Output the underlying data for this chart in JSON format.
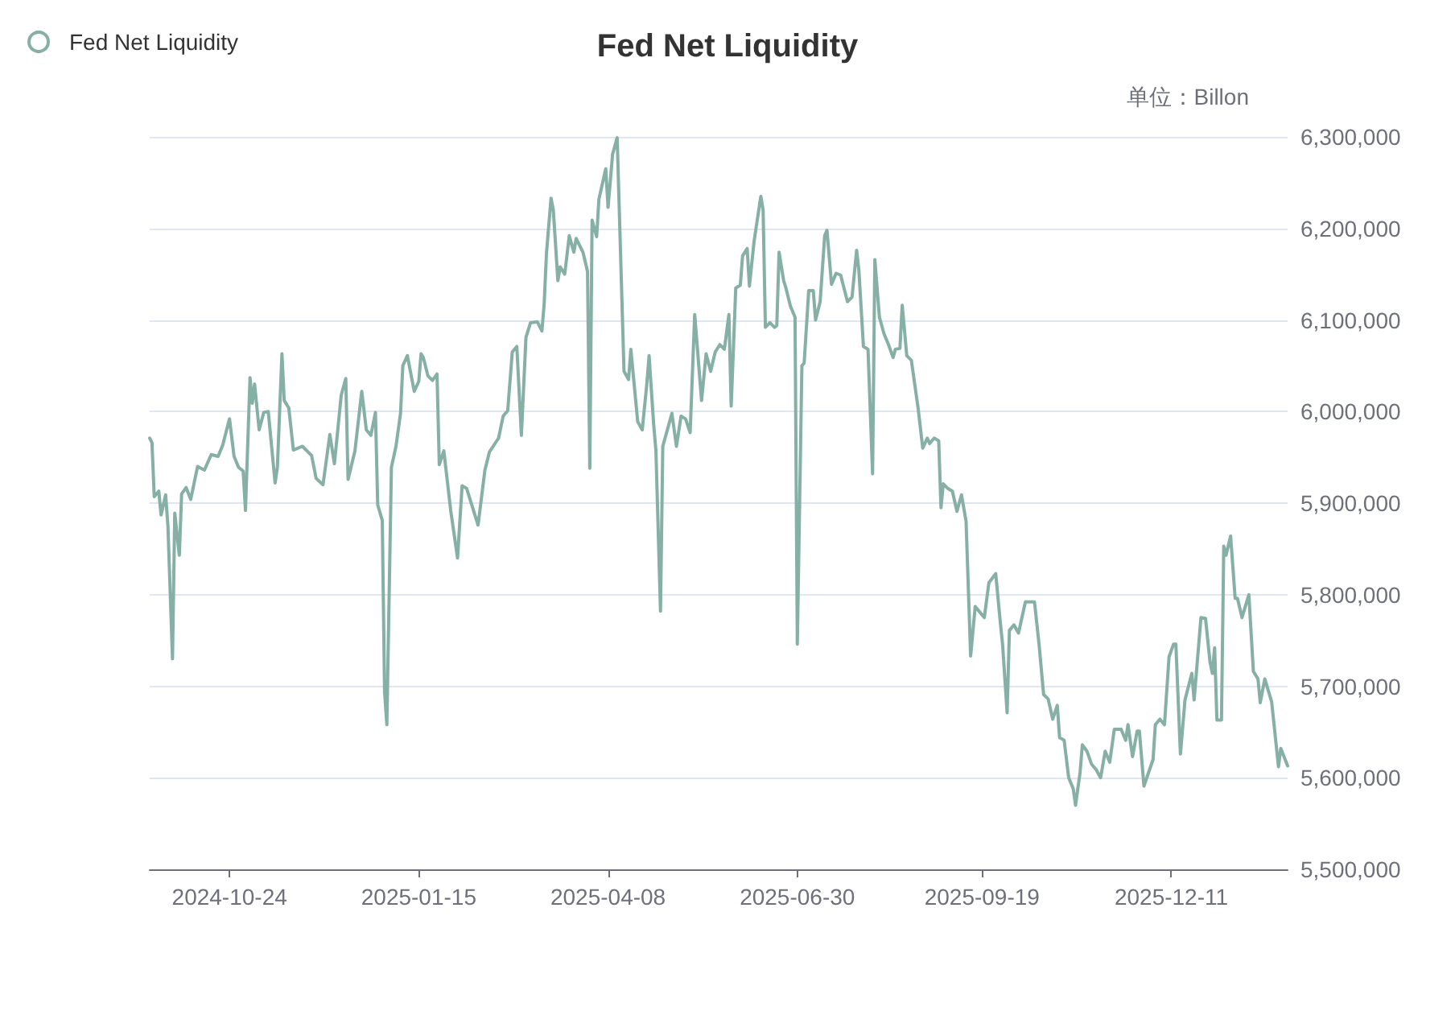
{
  "chart_data": {
    "type": "line",
    "title": "Fed Net Liquidity",
    "ylabel": "单位：Billon",
    "x": [
      "2024-09-19",
      "2024-09-20",
      "2024-09-21",
      "2024-09-23",
      "2024-09-24",
      "2024-09-26",
      "2024-09-27",
      "2024-09-29",
      "2024-09-30",
      "2024-10-02",
      "2024-10-03",
      "2024-10-05",
      "2024-10-07",
      "2024-10-10",
      "2024-10-13",
      "2024-10-16",
      "2024-10-19",
      "2024-10-21",
      "2024-10-24",
      "2024-10-26",
      "2024-10-28",
      "2024-10-30",
      "2024-10-31",
      "2024-11-02",
      "2024-11-03",
      "2024-11-04",
      "2024-11-06",
      "2024-11-08",
      "2024-11-10",
      "2024-11-13",
      "2024-11-14",
      "2024-11-16",
      "2024-11-17",
      "2024-11-19",
      "2024-11-21",
      "2024-11-25",
      "2024-11-29",
      "2024-12-01",
      "2024-12-04",
      "2024-12-07",
      "2024-12-09",
      "2024-12-12",
      "2024-12-14",
      "2024-12-15",
      "2024-12-18",
      "2024-12-21",
      "2024-12-23",
      "2024-12-25",
      "2024-12-27",
      "2024-12-28",
      "2024-12-30",
      "2024-12-31",
      "2025-01-01",
      "2025-01-03",
      "2025-01-05",
      "2025-01-07",
      "2025-01-08",
      "2025-01-10",
      "2025-01-13",
      "2025-01-15",
      "2025-01-16",
      "2025-01-17",
      "2025-01-19",
      "2025-01-21",
      "2025-01-23",
      "2025-01-24",
      "2025-01-26",
      "2025-01-29",
      "2025-02-01",
      "2025-02-03",
      "2025-02-05",
      "2025-02-10",
      "2025-02-13",
      "2025-02-15",
      "2025-02-19",
      "2025-02-21",
      "2025-02-23",
      "2025-02-25",
      "2025-02-27",
      "2025-03-01",
      "2025-03-03",
      "2025-03-05",
      "2025-03-08",
      "2025-03-10",
      "2025-03-11",
      "2025-03-12",
      "2025-03-14",
      "2025-03-15",
      "2025-03-17",
      "2025-03-18",
      "2025-03-20",
      "2025-03-22",
      "2025-03-24",
      "2025-03-25",
      "2025-03-28",
      "2025-03-30",
      "2025-03-31",
      "2025-04-01",
      "2025-04-03",
      "2025-04-04",
      "2025-04-07",
      "2025-04-08",
      "2025-04-10",
      "2025-04-12",
      "2025-04-15",
      "2025-04-17",
      "2025-04-18",
      "2025-04-21",
      "2025-04-23",
      "2025-04-25",
      "2025-04-26",
      "2025-04-28",
      "2025-04-29",
      "2025-05-01",
      "2025-05-02",
      "2025-05-05",
      "2025-05-06",
      "2025-05-08",
      "2025-05-10",
      "2025-05-12",
      "2025-05-14",
      "2025-05-16",
      "2025-05-19",
      "2025-05-21",
      "2025-05-23",
      "2025-05-25",
      "2025-05-27",
      "2025-05-29",
      "2025-05-31",
      "2025-06-01",
      "2025-06-03",
      "2025-06-05",
      "2025-06-06",
      "2025-06-08",
      "2025-06-09",
      "2025-06-11",
      "2025-06-12",
      "2025-06-14",
      "2025-06-15",
      "2025-06-16",
      "2025-06-18",
      "2025-06-20",
      "2025-06-21",
      "2025-06-22",
      "2025-06-24",
      "2025-06-25",
      "2025-06-27",
      "2025-06-29",
      "2025-06-30",
      "2025-07-02",
      "2025-07-03",
      "2025-07-05",
      "2025-07-07",
      "2025-07-08",
      "2025-07-10",
      "2025-07-12",
      "2025-07-13",
      "2025-07-15",
      "2025-07-17",
      "2025-07-19",
      "2025-07-22",
      "2025-07-24",
      "2025-07-26",
      "2025-07-27",
      "2025-07-29",
      "2025-07-31",
      "2025-08-02",
      "2025-08-03",
      "2025-08-05",
      "2025-08-07",
      "2025-08-09",
      "2025-08-11",
      "2025-08-12",
      "2025-08-14",
      "2025-08-15",
      "2025-08-17",
      "2025-08-19",
      "2025-08-22",
      "2025-08-24",
      "2025-08-26",
      "2025-08-27",
      "2025-08-29",
      "2025-08-31",
      "2025-09-01",
      "2025-09-02",
      "2025-09-04",
      "2025-09-06",
      "2025-09-08",
      "2025-09-10",
      "2025-09-12",
      "2025-09-14",
      "2025-09-16",
      "2025-09-18",
      "2025-09-20",
      "2025-09-22",
      "2025-09-25",
      "2025-09-27",
      "2025-09-28",
      "2025-09-30",
      "2025-10-01",
      "2025-10-03",
      "2025-10-05",
      "2025-10-08",
      "2025-10-12",
      "2025-10-14",
      "2025-10-16",
      "2025-10-18",
      "2025-10-20",
      "2025-10-22",
      "2025-10-23",
      "2025-10-25",
      "2025-10-27",
      "2025-10-29",
      "2025-10-30",
      "2025-11-01",
      "2025-11-02",
      "2025-11-04",
      "2025-11-06",
      "2025-11-08",
      "2025-11-10",
      "2025-11-12",
      "2025-11-14",
      "2025-11-16",
      "2025-11-19",
      "2025-11-21",
      "2025-11-22",
      "2025-11-24",
      "2025-11-26",
      "2025-11-27",
      "2025-11-29",
      "2025-12-03",
      "2025-12-04",
      "2025-12-06",
      "2025-12-08",
      "2025-12-10",
      "2025-12-12",
      "2025-12-13",
      "2025-12-15",
      "2025-12-17",
      "2025-12-20",
      "2025-12-21",
      "2025-12-24",
      "2025-12-26",
      "2025-12-28",
      "2025-12-29",
      "2025-12-30",
      "2025-12-31",
      "2026-01-02",
      "2026-01-03",
      "2026-01-04",
      "2026-01-06",
      "2026-01-08",
      "2026-01-09",
      "2026-01-11",
      "2026-01-14",
      "2026-01-16",
      "2026-01-18",
      "2026-01-19",
      "2026-01-21",
      "2026-01-24",
      "2026-01-27",
      "2026-01-28",
      "2026-01-31"
    ],
    "series": [
      {
        "name": "Fed Net Liquidity",
        "color": "#86b0a5",
        "values": [
          5971000,
          5966000,
          5907000,
          5913000,
          5887000,
          5909000,
          5875000,
          5730000,
          5889000,
          5843000,
          5910000,
          5917000,
          5904000,
          5940000,
          5936000,
          5953000,
          5951000,
          5963000,
          5992000,
          5951000,
          5939000,
          5935000,
          5892000,
          6037000,
          6009000,
          6030000,
          5980000,
          5999000,
          6000000,
          5922000,
          5939000,
          6063000,
          6012000,
          6004000,
          5958000,
          5962000,
          5952000,
          5927000,
          5920000,
          5975000,
          5943000,
          6018000,
          6036000,
          5926000,
          5957000,
          6022000,
          5980000,
          5974000,
          5999000,
          5898000,
          5881000,
          5694000,
          5658000,
          5939000,
          5962000,
          5998000,
          6050000,
          6061000,
          6022000,
          6033000,
          6063000,
          6059000,
          6039000,
          6034000,
          6041000,
          5942000,
          5957000,
          5892000,
          5840000,
          5919000,
          5916000,
          5876000,
          5936000,
          5956000,
          5971000,
          5995000,
          6001000,
          6065000,
          6071000,
          5974000,
          6081000,
          6097000,
          6098000,
          6088000,
          6118000,
          6173000,
          6233000,
          6220000,
          6143000,
          6158000,
          6150000,
          6192000,
          6174000,
          6189000,
          6174000,
          6153000,
          5938000,
          6209000,
          6191000,
          6232000,
          6265000,
          6223000,
          6281000,
          6299000,
          6044000,
          6035000,
          6068000,
          5989000,
          5980000,
          6030000,
          6061000,
          5986000,
          5957000,
          5782000,
          5962000,
          5989000,
          5998000,
          5962000,
          5995000,
          5992000,
          5977000,
          6106000,
          6012000,
          6063000,
          6044000,
          6065000,
          6073000,
          6068000,
          6106000,
          6006000,
          6135000,
          6138000,
          6170000,
          6178000,
          6137000,
          6185000,
          6202000,
          6235000,
          6220000,
          6092000,
          6097000,
          6092000,
          6094000,
          6174000,
          6143000,
          6135000,
          6115000,
          6103000,
          5746000,
          6050000,
          6053000,
          6132000,
          6132000,
          6100000,
          6120000,
          6192000,
          6198000,
          6139000,
          6151000,
          6149000,
          6120000,
          6125000,
          6176000,
          6154000,
          6071000,
          6068000,
          5932000,
          6166000,
          6103000,
          6085000,
          6073000,
          6059000,
          6068000,
          6069000,
          6116000,
          6061000,
          6056000,
          6003000,
          5960000,
          5971000,
          5965000,
          5971000,
          5968000,
          5895000,
          5921000,
          5916000,
          5913000,
          5891000,
          5909000,
          5880000,
          5733000,
          5787000,
          5781000,
          5775000,
          5813000,
          5823000,
          5770000,
          5746000,
          5671000,
          5761000,
          5767000,
          5758000,
          5792000,
          5792000,
          5746000,
          5691000,
          5686000,
          5664000,
          5679000,
          5644000,
          5641000,
          5600000,
          5588000,
          5570000,
          5606000,
          5636000,
          5629000,
          5615000,
          5609000,
          5600000,
          5629000,
          5617000,
          5653000,
          5653000,
          5641000,
          5658000,
          5623000,
          5651000,
          5651000,
          5591000,
          5620000,
          5658000,
          5664000,
          5658000,
          5732000,
          5746000,
          5746000,
          5626000,
          5685000,
          5714000,
          5685000,
          5775000,
          5774000,
          5726000,
          5714000,
          5742000,
          5663000,
          5663000,
          5853000,
          5843000,
          5864000,
          5796000,
          5796000,
          5775000,
          5800000,
          5716000,
          5708000,
          5682000,
          5708000,
          5683000,
          5612000,
          5632000,
          5613000
        ]
      }
    ],
    "xlim": [
      "2024-09-19",
      "2026-01-31"
    ],
    "xticks": [
      "2024-10-24",
      "2025-01-15",
      "2025-04-08",
      "2025-06-30",
      "2025-09-19",
      "2025-12-11"
    ],
    "ylim": [
      5500000,
      6300000
    ],
    "yticks": [
      {
        "value": 5500000,
        "label": "5,500,000"
      },
      {
        "value": 5600000,
        "label": "5,600,000"
      },
      {
        "value": 5700000,
        "label": "5,700,000"
      },
      {
        "value": 5800000,
        "label": "5,800,000"
      },
      {
        "value": 5900000,
        "label": "5,900,000"
      },
      {
        "value": 6000000,
        "label": "6,000,000"
      },
      {
        "value": 6100000,
        "label": "6,100,000"
      },
      {
        "value": 6200000,
        "label": "6,200,000"
      },
      {
        "value": 6300000,
        "label": "6,300,000"
      }
    ],
    "grid": "y",
    "legend": "top left",
    "marker": "none",
    "line_style": "solid"
  }
}
